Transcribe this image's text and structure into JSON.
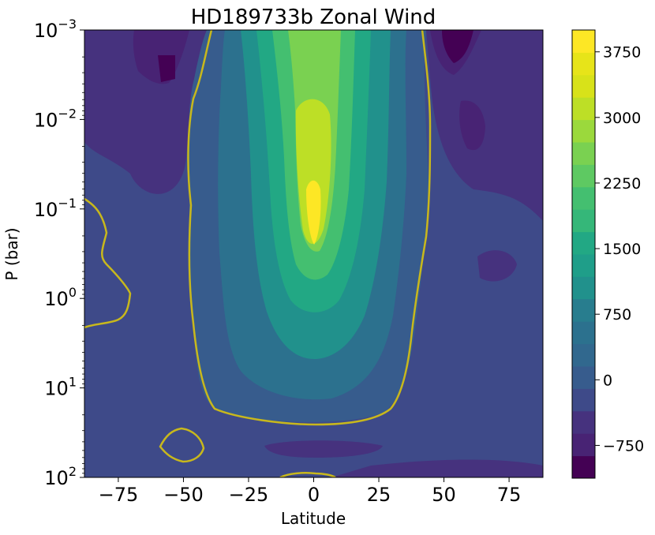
{
  "chart_data": {
    "type": "heatmap",
    "title": "HD189733b Zonal Wind",
    "xlabel": "Latitude",
    "ylabel": "P (bar)",
    "x_ticks": [
      {
        "value": -75,
        "label": "−75"
      },
      {
        "value": -50,
        "label": "−50"
      },
      {
        "value": -25,
        "label": "−25"
      },
      {
        "value": 0,
        "label": "0"
      },
      {
        "value": 25,
        "label": "25"
      },
      {
        "value": 50,
        "label": "50"
      },
      {
        "value": 75,
        "label": "75"
      }
    ],
    "y_ticks": [
      {
        "exp": -3,
        "base": "10",
        "sup": "−3"
      },
      {
        "exp": -2,
        "base": "10",
        "sup": "−2"
      },
      {
        "exp": -1,
        "base": "10",
        "sup": "−1"
      },
      {
        "exp": 0,
        "base": "10",
        "sup": "0"
      },
      {
        "exp": 1,
        "base": "10",
        "sup": "1"
      },
      {
        "exp": 2,
        "base": "10",
        "sup": "2"
      }
    ],
    "xlim": [
      -88,
      88
    ],
    "ylim_pressure_bar": [
      0.001,
      100
    ],
    "y_scale": "log",
    "y_inverted": true,
    "colormap": "viridis",
    "colorbar": {
      "range": [
        -1125,
        4000
      ],
      "ticks": [
        {
          "value": 3750,
          "label": "3750"
        },
        {
          "value": 3000,
          "label": "3000"
        },
        {
          "value": 2250,
          "label": "2250"
        },
        {
          "value": 1500,
          "label": "1500"
        },
        {
          "value": 750,
          "label": "750"
        },
        {
          "value": 0,
          "label": "0"
        },
        {
          "value": -750,
          "label": "−750"
        }
      ]
    },
    "zero_contour_color": "#c8b81c"
  }
}
